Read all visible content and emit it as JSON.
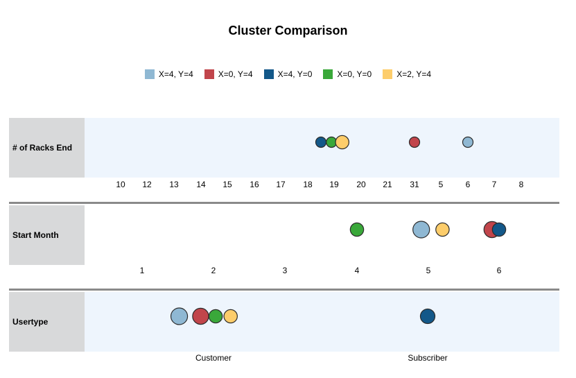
{
  "chart_data": {
    "type": "bubble",
    "title": "Cluster Comparison",
    "legend": [
      {
        "name": "X=4, Y=4",
        "color": "#8fb8d3"
      },
      {
        "name": "X=0, Y=4",
        "color": "#c1454b"
      },
      {
        "name": "X=4, Y=0",
        "color": "#135889"
      },
      {
        "name": "X=0, Y=0",
        "color": "#3aa83a"
      },
      {
        "name": "X=2, Y=4",
        "color": "#fdcd6b"
      }
    ],
    "legend_position": "top-center",
    "rows": [
      {
        "name": "# of Racks End",
        "categories": [
          "10",
          "12",
          "13",
          "14",
          "15",
          "16",
          "17",
          "18",
          "19",
          "20",
          "21",
          "31",
          "5",
          "6",
          "7",
          "8"
        ],
        "points": [
          {
            "series": 2,
            "x": 18.5,
            "size": 1
          },
          {
            "series": 3,
            "x": 18.9,
            "size": 1
          },
          {
            "series": 4,
            "x": 19.3,
            "size": 2
          },
          {
            "series": 1,
            "x": 31,
            "size": 1
          },
          {
            "series": 0,
            "x": 6,
            "size": 1
          }
        ]
      },
      {
        "name": "Start Month",
        "categories": [
          "1",
          "2",
          "3",
          "4",
          "5",
          "6"
        ],
        "points": [
          {
            "series": 3,
            "x": 4,
            "size": 2
          },
          {
            "series": 0,
            "x": 4.9,
            "size": 3.5
          },
          {
            "series": 4,
            "x": 5.2,
            "size": 2
          },
          {
            "series": 1,
            "x": 5.9,
            "size": 3.2
          },
          {
            "series": 2,
            "x": 6.2,
            "size": 2
          }
        ]
      },
      {
        "name": "Usertype",
        "categories": [
          "Customer",
          "Subscriber"
        ],
        "points": [
          {
            "series": 0,
            "x": 0.84,
            "size": 3.5
          },
          {
            "series": 1,
            "x": 0.94,
            "size": 3.2
          },
          {
            "series": 3,
            "x": 1.01,
            "size": 2
          },
          {
            "series": 4,
            "x": 1.08,
            "size": 2
          },
          {
            "series": 2,
            "x": 2.0,
            "size": 2.5
          }
        ]
      }
    ]
  }
}
